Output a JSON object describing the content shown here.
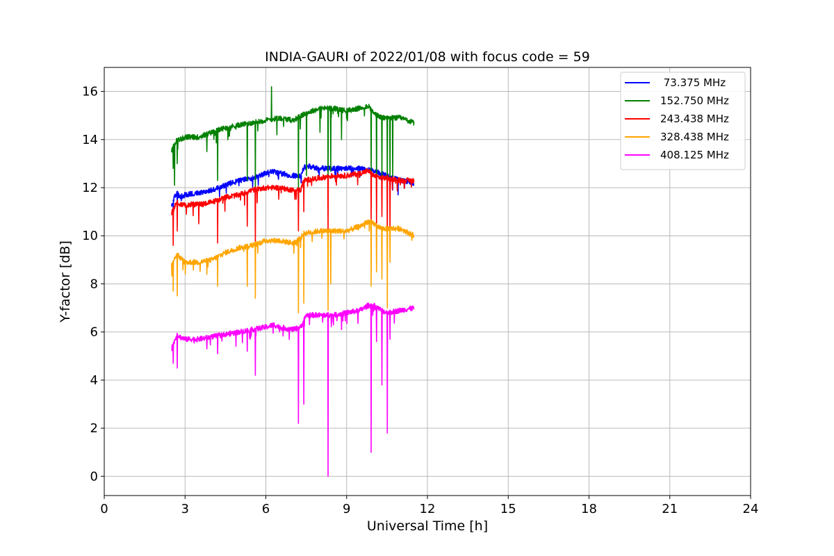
{
  "chart_data": {
    "type": "line",
    "title": "INDIA-GAURI of 2022/01/08 with focus code = 59",
    "xlabel": "Universal Time [h]",
    "ylabel": "Y-factor [dB]",
    "xlim": [
      0,
      24
    ],
    "ylim": [
      -0.8,
      17
    ],
    "xticks": [
      0,
      3,
      6,
      9,
      12,
      15,
      18,
      21,
      24
    ],
    "yticks": [
      0,
      2,
      4,
      6,
      8,
      10,
      12,
      14,
      16
    ],
    "xtick_labels": [
      "0",
      "3",
      "6",
      "9",
      "12",
      "15",
      "18",
      "21",
      "24"
    ],
    "ytick_labels": [
      "0",
      "2",
      "4",
      "6",
      "8",
      "10",
      "12",
      "14",
      "16"
    ],
    "grid": true,
    "legend_position": "top-right",
    "series": [
      {
        "name": " 73.375 MHz",
        "color": "#0000ff",
        "x": [
          2.5,
          2.6,
          2.7,
          2.8,
          3.0,
          3.5,
          4.0,
          4.5,
          5.0,
          5.5,
          6.0,
          6.2,
          6.5,
          7.0,
          7.3,
          7.4,
          7.5,
          8.0,
          8.5,
          9.0,
          9.5,
          10.0,
          10.5,
          11.0,
          11.5
        ],
        "y": [
          11.2,
          11.6,
          11.8,
          11.6,
          11.7,
          11.8,
          11.9,
          12.1,
          12.3,
          12.4,
          12.6,
          12.7,
          12.6,
          12.5,
          12.5,
          12.8,
          12.9,
          12.8,
          12.8,
          12.8,
          12.8,
          12.7,
          12.5,
          12.3,
          12.2
        ],
        "dips": [
          [
            2.55,
            11.0
          ],
          [
            2.7,
            11.2
          ],
          [
            5.5,
            12.0
          ],
          [
            7.3,
            12.2
          ],
          [
            10.7,
            11.9
          ],
          [
            10.9,
            11.7
          ]
        ]
      },
      {
        "name": "152.750 MHz",
        "color": "#008000",
        "x": [
          2.5,
          2.6,
          2.7,
          2.8,
          3.0,
          3.5,
          4.0,
          4.5,
          5.0,
          5.5,
          6.0,
          6.5,
          7.0,
          7.5,
          8.0,
          8.5,
          9.0,
          9.5,
          9.8,
          10.0,
          10.3,
          10.5,
          10.7,
          11.0,
          11.5
        ],
        "y": [
          13.5,
          13.8,
          14.0,
          14.0,
          14.1,
          14.1,
          14.3,
          14.5,
          14.6,
          14.7,
          14.8,
          14.9,
          14.8,
          15.1,
          15.3,
          15.3,
          15.2,
          15.3,
          15.4,
          15.1,
          14.9,
          14.9,
          14.9,
          14.9,
          14.7
        ],
        "dips": [
          [
            2.55,
            12.8
          ],
          [
            2.6,
            12.1
          ],
          [
            2.7,
            13.0
          ],
          [
            3.8,
            13.5
          ],
          [
            4.2,
            12.3
          ],
          [
            5.3,
            12.3
          ],
          [
            5.6,
            12.0
          ],
          [
            6.2,
            16.2
          ],
          [
            6.4,
            14.2
          ],
          [
            7.2,
            12.0
          ],
          [
            7.5,
            12.5
          ],
          [
            8.0,
            14.3
          ],
          [
            8.3,
            12.0
          ],
          [
            8.4,
            12.7
          ],
          [
            8.8,
            14.0
          ],
          [
            9.9,
            12.3
          ],
          [
            10.1,
            11.9
          ],
          [
            10.3,
            12.5
          ],
          [
            10.5,
            12.0
          ],
          [
            10.6,
            11.8
          ],
          [
            10.7,
            12.2
          ]
        ]
      },
      {
        "name": "243.438 MHz",
        "color": "#ff0000",
        "x": [
          2.5,
          2.6,
          2.7,
          2.8,
          3.0,
          3.5,
          4.0,
          4.5,
          5.0,
          5.5,
          6.0,
          6.5,
          7.0,
          7.3,
          7.4,
          8.0,
          8.5,
          9.0,
          9.5,
          9.8,
          10.0,
          10.3,
          10.5,
          11.0,
          11.5
        ],
        "y": [
          10.9,
          11.2,
          11.4,
          11.3,
          11.3,
          11.3,
          11.4,
          11.6,
          11.7,
          11.9,
          12.0,
          12.0,
          11.9,
          11.9,
          12.3,
          12.4,
          12.5,
          12.5,
          12.6,
          12.7,
          12.5,
          12.4,
          12.4,
          12.3,
          12.3
        ],
        "dips": [
          [
            2.55,
            9.6
          ],
          [
            2.7,
            10.2
          ],
          [
            3.5,
            10.5
          ],
          [
            4.2,
            9.7
          ],
          [
            5.3,
            10.4
          ],
          [
            5.6,
            9.6
          ],
          [
            7.2,
            10.2
          ],
          [
            7.4,
            11.0
          ],
          [
            8.3,
            10.1
          ],
          [
            9.9,
            10.5
          ],
          [
            10.1,
            10.5
          ],
          [
            10.3,
            10.8
          ],
          [
            10.5,
            9.5
          ],
          [
            10.6,
            10.0
          ]
        ]
      },
      {
        "name": "328.438 MHz",
        "color": "#ffa500",
        "x": [
          2.5,
          2.6,
          2.7,
          2.8,
          3.0,
          3.5,
          4.0,
          4.5,
          5.0,
          5.5,
          6.0,
          6.5,
          7.0,
          7.3,
          7.4,
          8.0,
          8.5,
          9.0,
          9.5,
          9.8,
          10.0,
          10.3,
          10.5,
          11.0,
          11.5
        ],
        "y": [
          8.8,
          9.0,
          9.3,
          9.1,
          8.9,
          8.9,
          9.0,
          9.3,
          9.5,
          9.6,
          9.8,
          9.8,
          9.7,
          9.9,
          10.1,
          10.2,
          10.2,
          10.2,
          10.4,
          10.6,
          10.5,
          10.3,
          10.3,
          10.3,
          10.0
        ],
        "dips": [
          [
            2.55,
            7.7
          ],
          [
            2.7,
            7.5
          ],
          [
            3.8,
            8.4
          ],
          [
            4.2,
            7.9
          ],
          [
            5.3,
            7.9
          ],
          [
            5.6,
            7.4
          ],
          [
            7.2,
            6.8
          ],
          [
            7.4,
            7.2
          ],
          [
            8.3,
            6.9
          ],
          [
            8.4,
            8.0
          ],
          [
            9.9,
            7.9
          ],
          [
            10.1,
            8.5
          ],
          [
            10.3,
            8.2
          ],
          [
            10.5,
            7.0
          ],
          [
            10.6,
            8.9
          ]
        ]
      },
      {
        "name": "408.125 MHz",
        "color": "#ff00ff",
        "x": [
          2.5,
          2.6,
          2.7,
          2.8,
          3.0,
          3.5,
          4.0,
          4.5,
          5.0,
          5.5,
          6.0,
          6.3,
          6.5,
          7.0,
          7.3,
          7.5,
          8.0,
          8.5,
          9.0,
          9.5,
          9.8,
          10.0,
          10.3,
          10.5,
          11.0,
          11.5
        ],
        "y": [
          5.3,
          5.6,
          5.9,
          5.8,
          5.7,
          5.7,
          5.8,
          5.9,
          6.0,
          6.1,
          6.2,
          6.3,
          6.2,
          6.1,
          6.2,
          6.7,
          6.7,
          6.7,
          6.8,
          6.9,
          7.1,
          7.1,
          6.9,
          6.8,
          6.9,
          7.0
        ],
        "dips": [
          [
            2.55,
            4.7
          ],
          [
            2.7,
            4.5
          ],
          [
            3.8,
            5.3
          ],
          [
            4.2,
            5.1
          ],
          [
            5.3,
            5.2
          ],
          [
            5.6,
            4.2
          ],
          [
            7.2,
            2.2
          ],
          [
            7.4,
            3.0
          ],
          [
            8.3,
            0.0
          ],
          [
            8.5,
            6.3
          ],
          [
            8.8,
            6.1
          ],
          [
            9.9,
            1.0
          ],
          [
            10.1,
            5.6
          ],
          [
            10.3,
            3.8
          ],
          [
            10.5,
            1.8
          ],
          [
            10.6,
            5.7
          ]
        ]
      }
    ]
  }
}
